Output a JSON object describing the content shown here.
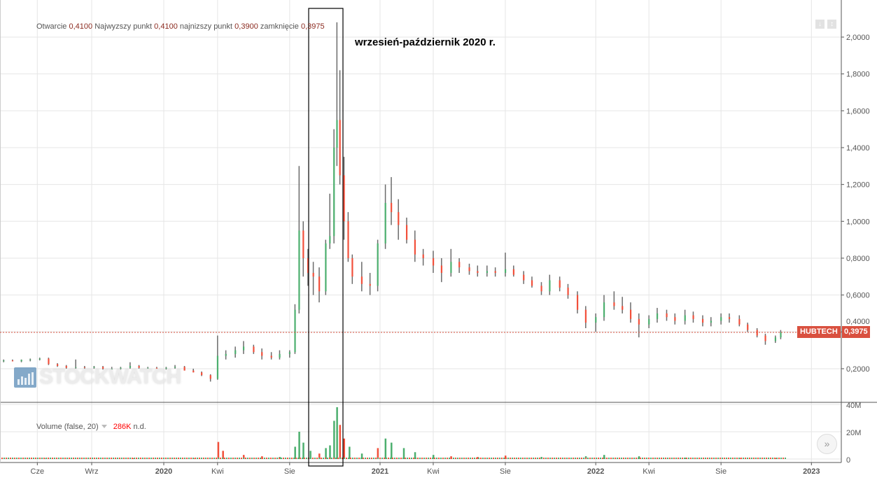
{
  "header": {
    "open_label": "Otwarcie",
    "open": "0,4100",
    "high_label": "Najwyzszy punkt",
    "high": "0,4100",
    "low_label": "najnizszy punkt",
    "low": "0,3900",
    "close_label": "zamknięcie",
    "close": "0,3975"
  },
  "annotation": "wrzesień-październik 2020 r.",
  "ticker": "HUBTECH",
  "last_value": "0,3975",
  "volume_legend": {
    "label": "Volume (false, 20)",
    "value": "286K",
    "suffix": "n.d."
  },
  "watermark": "STOCKWATCH",
  "colors": {
    "up": "#4caf6e",
    "down": "#f2503b",
    "wick": "#6b6b6b",
    "last_price": "#d9503f"
  },
  "chart_data": {
    "type": "candlestick",
    "price_axis": {
      "ticks": [
        "2,0000",
        "1,8000",
        "1,6000",
        "1,4000",
        "1,2000",
        "1,0000",
        "0,8000",
        "0,6000",
        "0,4000",
        "0,2000"
      ],
      "tick_values": [
        2.0,
        1.8,
        1.6,
        1.4,
        1.2,
        1.0,
        0.8,
        0.6,
        0.4,
        0.2
      ]
    },
    "volume_axis": {
      "ticks": [
        "40M",
        "20M",
        "0"
      ],
      "tick_values": [
        40000000,
        20000000,
        0
      ]
    },
    "x_axis": {
      "ticks": [
        {
          "label": "Cze",
          "date": "2019-06-01",
          "bold": false
        },
        {
          "label": "Wrz",
          "date": "2019-09-01",
          "bold": false
        },
        {
          "label": "2020",
          "date": "2020-01-01",
          "bold": true
        },
        {
          "label": "Kwi",
          "date": "2020-04-01",
          "bold": false
        },
        {
          "label": "Sie",
          "date": "2020-08-01",
          "bold": false
        },
        {
          "label": "2021",
          "date": "2021-01-01",
          "bold": true
        },
        {
          "label": "Kwi",
          "date": "2021-04-01",
          "bold": false
        },
        {
          "label": "Sie",
          "date": "2021-08-01",
          "bold": false
        },
        {
          "label": "2022",
          "date": "2022-01-01",
          "bold": true
        },
        {
          "label": "Kwi",
          "date": "2022-04-01",
          "bold": false
        },
        {
          "label": "Sie",
          "date": "2022-08-01",
          "bold": false
        },
        {
          "label": "2023",
          "date": "2023-01-01",
          "bold": true
        }
      ]
    },
    "last_price": 0.3975,
    "highlight_range": [
      "2020-09-01",
      "2020-11-01"
    ],
    "ohlc": [
      [
        "2019-04-05",
        0.24,
        0.25,
        0.235,
        0.245
      ],
      [
        "2019-04-20",
        0.245,
        0.25,
        0.24,
        0.24
      ],
      [
        "2019-05-05",
        0.24,
        0.25,
        0.235,
        0.248
      ],
      [
        "2019-05-20",
        0.248,
        0.255,
        0.24,
        0.25
      ],
      [
        "2019-06-05",
        0.25,
        0.26,
        0.245,
        0.255
      ],
      [
        "2019-06-20",
        0.255,
        0.26,
        0.22,
        0.225
      ],
      [
        "2019-07-05",
        0.225,
        0.23,
        0.21,
        0.215
      ],
      [
        "2019-07-20",
        0.215,
        0.22,
        0.2,
        0.205
      ],
      [
        "2019-08-05",
        0.205,
        0.25,
        0.2,
        0.208
      ],
      [
        "2019-08-20",
        0.208,
        0.215,
        0.2,
        0.205
      ],
      [
        "2019-09-05",
        0.205,
        0.215,
        0.2,
        0.21
      ],
      [
        "2019-09-20",
        0.21,
        0.215,
        0.195,
        0.2
      ],
      [
        "2019-10-05",
        0.2,
        0.21,
        0.195,
        0.2
      ],
      [
        "2019-10-20",
        0.2,
        0.21,
        0.195,
        0.205
      ],
      [
        "2019-11-05",
        0.205,
        0.235,
        0.2,
        0.215
      ],
      [
        "2019-11-20",
        0.215,
        0.22,
        0.2,
        0.205
      ],
      [
        "2019-12-05",
        0.205,
        0.21,
        0.2,
        0.205
      ],
      [
        "2019-12-20",
        0.205,
        0.21,
        0.2,
        0.2
      ],
      [
        "2020-01-05",
        0.2,
        0.21,
        0.195,
        0.205
      ],
      [
        "2020-01-20",
        0.205,
        0.22,
        0.2,
        0.21
      ],
      [
        "2020-02-05",
        0.21,
        0.215,
        0.19,
        0.19
      ],
      [
        "2020-02-20",
        0.19,
        0.2,
        0.18,
        0.18
      ],
      [
        "2020-03-05",
        0.18,
        0.185,
        0.16,
        0.165
      ],
      [
        "2020-03-20",
        0.165,
        0.17,
        0.13,
        0.145
      ],
      [
        "2020-04-01",
        0.145,
        0.38,
        0.14,
        0.27
      ],
      [
        "2020-04-15",
        0.27,
        0.3,
        0.25,
        0.28
      ],
      [
        "2020-05-01",
        0.28,
        0.32,
        0.26,
        0.3
      ],
      [
        "2020-05-15",
        0.3,
        0.35,
        0.28,
        0.32
      ],
      [
        "2020-06-01",
        0.32,
        0.33,
        0.28,
        0.29
      ],
      [
        "2020-06-15",
        0.29,
        0.31,
        0.25,
        0.27
      ],
      [
        "2020-07-01",
        0.27,
        0.29,
        0.25,
        0.26
      ],
      [
        "2020-07-15",
        0.26,
        0.3,
        0.25,
        0.28
      ],
      [
        "2020-08-01",
        0.28,
        0.3,
        0.26,
        0.29
      ],
      [
        "2020-08-10",
        0.29,
        0.55,
        0.28,
        0.52
      ],
      [
        "2020-08-17",
        0.52,
        1.3,
        0.5,
        0.95
      ],
      [
        "2020-08-24",
        0.95,
        1.0,
        0.7,
        0.8
      ],
      [
        "2020-09-01",
        0.8,
        0.85,
        0.65,
        0.72
      ],
      [
        "2020-09-10",
        0.72,
        0.78,
        0.6,
        0.7
      ],
      [
        "2020-09-20",
        0.7,
        0.75,
        0.56,
        0.62
      ],
      [
        "2020-10-01",
        0.62,
        0.9,
        0.6,
        0.88
      ],
      [
        "2020-10-08",
        0.88,
        1.15,
        0.85,
        0.92
      ],
      [
        "2020-10-15",
        0.92,
        1.5,
        0.88,
        1.4
      ],
      [
        "2020-10-20",
        1.4,
        2.08,
        1.3,
        1.55
      ],
      [
        "2020-10-25",
        1.55,
        1.82,
        1.2,
        1.25
      ],
      [
        "2020-11-01",
        1.25,
        1.35,
        0.9,
        1.0
      ],
      [
        "2020-11-08",
        1.0,
        1.05,
        0.78,
        0.8
      ],
      [
        "2020-11-15",
        0.8,
        0.82,
        0.66,
        0.7
      ],
      [
        "2020-12-01",
        0.7,
        0.78,
        0.62,
        0.66
      ],
      [
        "2020-12-15",
        0.66,
        0.72,
        0.6,
        0.65
      ],
      [
        "2020-12-28",
        0.65,
        0.9,
        0.62,
        0.88
      ],
      [
        "2021-01-10",
        0.88,
        1.2,
        0.85,
        1.1
      ],
      [
        "2021-01-20",
        1.1,
        1.24,
        0.98,
        1.05
      ],
      [
        "2021-02-01",
        1.05,
        1.12,
        0.9,
        0.98
      ],
      [
        "2021-02-15",
        0.98,
        1.02,
        0.88,
        0.9
      ],
      [
        "2021-03-01",
        0.9,
        0.95,
        0.78,
        0.82
      ],
      [
        "2021-03-15",
        0.82,
        0.85,
        0.76,
        0.8
      ],
      [
        "2021-04-01",
        0.8,
        0.84,
        0.72,
        0.76
      ],
      [
        "2021-04-15",
        0.76,
        0.8,
        0.67,
        0.72
      ],
      [
        "2021-05-01",
        0.72,
        0.85,
        0.7,
        0.78
      ],
      [
        "2021-05-15",
        0.78,
        0.8,
        0.72,
        0.75
      ],
      [
        "2021-06-01",
        0.75,
        0.77,
        0.71,
        0.73
      ],
      [
        "2021-06-15",
        0.73,
        0.76,
        0.7,
        0.72
      ],
      [
        "2021-07-01",
        0.72,
        0.76,
        0.7,
        0.73
      ],
      [
        "2021-07-15",
        0.73,
        0.75,
        0.7,
        0.72
      ],
      [
        "2021-08-01",
        0.72,
        0.83,
        0.7,
        0.74
      ],
      [
        "2021-08-15",
        0.74,
        0.76,
        0.7,
        0.71
      ],
      [
        "2021-09-01",
        0.71,
        0.73,
        0.66,
        0.68
      ],
      [
        "2021-09-15",
        0.68,
        0.7,
        0.64,
        0.65
      ],
      [
        "2021-10-01",
        0.65,
        0.67,
        0.6,
        0.62
      ],
      [
        "2021-10-15",
        0.62,
        0.71,
        0.6,
        0.68
      ],
      [
        "2021-11-01",
        0.68,
        0.7,
        0.62,
        0.64
      ],
      [
        "2021-11-15",
        0.64,
        0.66,
        0.58,
        0.6
      ],
      [
        "2021-12-01",
        0.6,
        0.62,
        0.5,
        0.52
      ],
      [
        "2021-12-15",
        0.52,
        0.54,
        0.42,
        0.45
      ],
      [
        "2022-01-01",
        0.45,
        0.5,
        0.4,
        0.48
      ],
      [
        "2022-01-15",
        0.48,
        0.6,
        0.46,
        0.56
      ],
      [
        "2022-02-01",
        0.56,
        0.62,
        0.52,
        0.54
      ],
      [
        "2022-02-15",
        0.54,
        0.59,
        0.5,
        0.52
      ],
      [
        "2022-03-01",
        0.52,
        0.56,
        0.45,
        0.47
      ],
      [
        "2022-03-15",
        0.47,
        0.5,
        0.37,
        0.44
      ],
      [
        "2022-04-01",
        0.44,
        0.49,
        0.42,
        0.47
      ],
      [
        "2022-04-15",
        0.47,
        0.53,
        0.45,
        0.5
      ],
      [
        "2022-05-01",
        0.5,
        0.52,
        0.46,
        0.48
      ],
      [
        "2022-05-15",
        0.48,
        0.5,
        0.44,
        0.46
      ],
      [
        "2022-06-01",
        0.46,
        0.52,
        0.44,
        0.49
      ],
      [
        "2022-06-15",
        0.49,
        0.51,
        0.45,
        0.47
      ],
      [
        "2022-07-01",
        0.47,
        0.49,
        0.43,
        0.45
      ],
      [
        "2022-07-15",
        0.45,
        0.48,
        0.43,
        0.46
      ],
      [
        "2022-08-01",
        0.46,
        0.5,
        0.44,
        0.48
      ],
      [
        "2022-08-15",
        0.48,
        0.5,
        0.45,
        0.47
      ],
      [
        "2022-09-01",
        0.47,
        0.49,
        0.43,
        0.44
      ],
      [
        "2022-09-15",
        0.44,
        0.45,
        0.4,
        0.41
      ],
      [
        "2022-10-01",
        0.41,
        0.42,
        0.37,
        0.38
      ],
      [
        "2022-10-15",
        0.38,
        0.39,
        0.33,
        0.35
      ],
      [
        "2022-11-01",
        0.35,
        0.38,
        0.34,
        0.37
      ],
      [
        "2022-11-10",
        0.37,
        0.41,
        0.36,
        0.3975
      ]
    ],
    "volume": [
      [
        "2019-06-15",
        300000
      ],
      [
        "2019-11-10",
        500000
      ],
      [
        "2020-02-20",
        600000
      ],
      [
        "2020-04-02",
        12500000
      ],
      [
        "2020-04-10",
        6000000
      ],
      [
        "2020-05-15",
        3000000
      ],
      [
        "2020-06-15",
        2000000
      ],
      [
        "2020-07-15",
        1500000
      ],
      [
        "2020-08-10",
        9000000
      ],
      [
        "2020-08-17",
        20000000
      ],
      [
        "2020-08-24",
        12000000
      ],
      [
        "2020-09-05",
        6000000
      ],
      [
        "2020-09-20",
        4000000
      ],
      [
        "2020-10-01",
        8000000
      ],
      [
        "2020-10-08",
        10000000
      ],
      [
        "2020-10-15",
        28000000
      ],
      [
        "2020-10-20",
        38000000
      ],
      [
        "2020-10-25",
        25000000
      ],
      [
        "2020-11-01",
        15000000
      ],
      [
        "2020-11-10",
        9000000
      ],
      [
        "2020-12-01",
        4000000
      ],
      [
        "2020-12-28",
        8000000
      ],
      [
        "2021-01-10",
        15000000
      ],
      [
        "2021-01-20",
        12000000
      ],
      [
        "2021-02-10",
        8000000
      ],
      [
        "2021-03-01",
        5000000
      ],
      [
        "2021-04-01",
        3000000
      ],
      [
        "2021-05-01",
        2000000
      ],
      [
        "2021-06-15",
        1500000
      ],
      [
        "2021-08-01",
        2500000
      ],
      [
        "2021-10-01",
        1500000
      ],
      [
        "2021-12-15",
        2000000
      ],
      [
        "2022-01-15",
        3000000
      ],
      [
        "2022-03-15",
        2000000
      ],
      [
        "2022-06-01",
        1000000
      ],
      [
        "2022-09-01",
        800000
      ],
      [
        "2022-11-01",
        700000
      ]
    ]
  }
}
